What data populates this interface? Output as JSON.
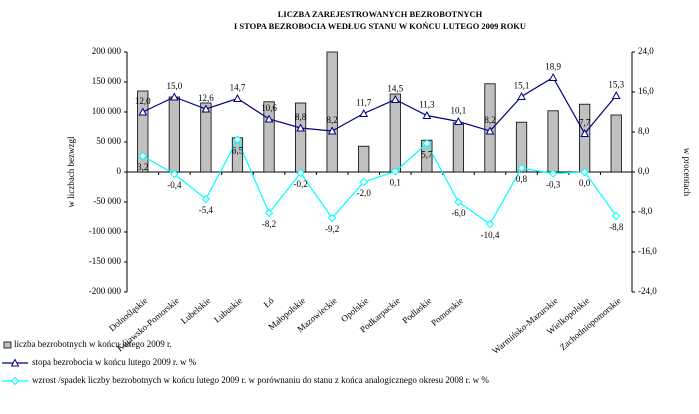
{
  "chart_data": {
    "type": "bar-line",
    "title": "LICZBA  ZAREJESTROWANYCH  BEZROBOTNYCH",
    "subtitle": "I  STOPA  BEZROBOCIA  WEDŁUG STANU W  KOŃCU LUTEGO 2009  ROKU",
    "y_label": "w liczbach bezwzgl",
    "y2_label": "w procentach",
    "categories": [
      "Dolnośląskie",
      "Kujawsko-Pomorskie",
      "Lubelskie",
      "Lubuskie",
      "Łó",
      "Małopolskie",
      "Mazowieckie",
      "Opolskie",
      "Podkarpackie",
      "Podlaskie",
      "Pomorskie",
      null,
      null,
      "Warmińsko-Mazurskie",
      "Wielkopolskie",
      "Zachodniopomorskie"
    ],
    "series": [
      {
        "name": "liczba bezrobotnych w końcu lutego 2009 r.",
        "kind": "bar",
        "color": "#c0c0c0",
        "values": [
          135000,
          125000,
          115000,
          57000,
          117000,
          115000,
          200000,
          43000,
          130000,
          53000,
          82000,
          147000,
          83000,
          102000,
          113000,
          95000
        ]
      },
      {
        "name": "stopa bezrobocia w końcu lutego 2009 r. w %",
        "kind": "line",
        "axis": "y2",
        "color": "#000080",
        "marker": "triangle",
        "values": [
          12.0,
          15.0,
          12.6,
          14.7,
          10.6,
          8.8,
          8.2,
          11.7,
          14.5,
          11.3,
          10.1,
          8.2,
          15.1,
          18.9,
          7.7,
          15.3
        ],
        "value_labels": [
          "12,0",
          "15,0",
          "12,6",
          "14,7",
          "10,6",
          "8,8",
          "8,2",
          "11,7",
          "14,5",
          "11,3",
          "10,1",
          "8,2",
          "15,1",
          "18,9",
          "7,7",
          "15,3"
        ]
      },
      {
        "name": "wzrost /spadek liczby bezrobotnych w końcu lutego 2009 r. w porównaniu do stanu z końca analogicznego okresu 2008 r. w %",
        "kind": "line",
        "axis": "y2",
        "color": "#00ffff",
        "marker": "diamond",
        "values": [
          3.2,
          -0.4,
          -5.4,
          6.5,
          -8.2,
          -0.2,
          -9.2,
          -2.0,
          0.1,
          5.7,
          -6.0,
          -10.4,
          0.8,
          -0.3,
          0.0,
          -8.8
        ],
        "value_labels": [
          "3,2",
          "-0,4",
          "-5,4",
          "6,5",
          "-8,2",
          "-0,2",
          "-9,2",
          "-2,0",
          "0,1",
          "5,7",
          "-6,0",
          "-10,4",
          "0,8",
          "-0,3",
          "0,0",
          "-8,8"
        ]
      }
    ],
    "ylim": [
      -200000,
      200000
    ],
    "yticks": [
      {
        "value": -200000,
        "label": "-200 000"
      },
      {
        "value": -150000,
        "label": "-150 000"
      },
      {
        "value": -100000,
        "label": "-100 000"
      },
      {
        "value": -50000,
        "label": "-50 000"
      },
      0,
      {
        "value": 50000,
        "label": "50 000"
      },
      {
        "value": 100000,
        "label": "100 000"
      },
      {
        "value": 150000,
        "label": "150 000"
      },
      {
        "value": 200000,
        "label": "200 000"
      }
    ],
    "y2lim": [
      -24,
      24
    ],
    "y2ticks": [
      {
        "value": -24,
        "label": "-24,0"
      },
      {
        "value": -16,
        "label": "-16,0"
      },
      {
        "value": -8,
        "label": "-8,0"
      },
      {
        "value": 0,
        "label": "0,0"
      },
      {
        "value": 8,
        "label": "8,0"
      },
      {
        "value": 16,
        "label": "16,0"
      },
      {
        "value": 24,
        "label": "24,0"
      }
    ]
  }
}
